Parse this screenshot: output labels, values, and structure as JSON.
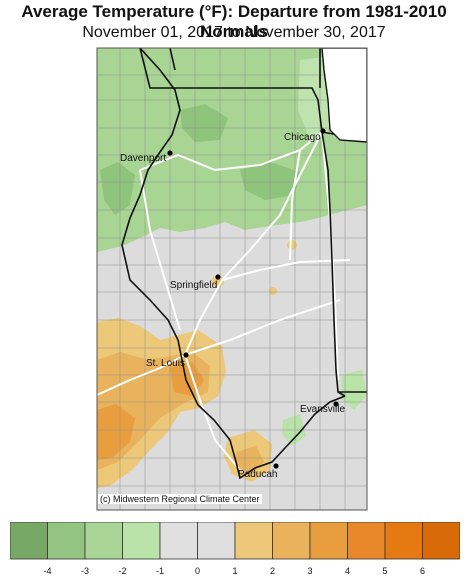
{
  "title": "Average Temperature (°F): Departure from 1981-2010 Normals",
  "subtitle": "November 01, 2017 to November 30, 2017",
  "credit": "(c) Midwestern Regional Climate Center",
  "cities": [
    {
      "id": "chicago",
      "name": "Chicago"
    },
    {
      "id": "davenport",
      "name": "Davenport"
    },
    {
      "id": "springfield",
      "name": "Springfield"
    },
    {
      "id": "st-louis",
      "name": "St. Louis"
    },
    {
      "id": "evansville",
      "name": "Evansville"
    },
    {
      "id": "paducah",
      "name": "Paducah"
    }
  ],
  "legend": {
    "colors": [
      "#77a866",
      "#94c482",
      "#a9d596",
      "#b9e3a8",
      "#e0e0e0",
      "#dedede",
      "#ecc878",
      "#eab25a",
      "#e89e3e",
      "#e9882a",
      "#e57912",
      "#d96a08"
    ],
    "ticks": [
      "-4",
      "-3",
      "-2",
      "-1",
      "0",
      "1",
      "2",
      "3",
      "4",
      "5",
      "6"
    ]
  },
  "colors": {
    "below_normal": "#a8d593",
    "near_normal": "#dcdcdc",
    "above_normal": "#e9b25c",
    "water": "#ffffff"
  }
}
